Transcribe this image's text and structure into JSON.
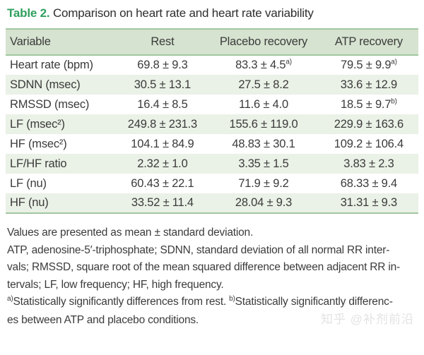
{
  "title": {
    "label": "Table 2.",
    "text": " Comparison on heart rate and heart rate variability"
  },
  "table": {
    "headers": [
      "Variable",
      "Rest",
      "Placebo recovery",
      "ATP recovery"
    ],
    "rows": [
      {
        "variable": "Heart rate (bpm)",
        "rest": "69.8 ± 9.3",
        "placebo": "83.3 ± 4.5",
        "placebo_sup": "a)",
        "atp": "79.5 ± 9.9",
        "atp_sup": "a)"
      },
      {
        "variable": "SDNN (msec)",
        "rest": "30.5 ± 13.1",
        "placebo": "27.5 ± 8.2",
        "atp": "33.6 ± 12.9"
      },
      {
        "variable": "RMSSD (msec)",
        "rest": "16.4 ± 8.5",
        "placebo": "11.6 ± 4.0",
        "atp": "18.5 ± 9.7",
        "atp_sup": "b)"
      },
      {
        "variable": "LF (msec²)",
        "rest": "249.8 ± 231.3",
        "placebo": "155.6 ± 119.0",
        "atp": "229.9 ± 163.6"
      },
      {
        "variable": "HF (msec²)",
        "rest": "104.1 ± 84.9",
        "placebo": "48.83 ± 30.1",
        "atp": "109.2 ± 106.4"
      },
      {
        "variable": "LF/HF ratio",
        "rest": "2.32 ± 1.0",
        "placebo": "3.35 ± 1.5",
        "atp": "3.83 ± 2.3"
      },
      {
        "variable": "LF (nu)",
        "rest": "60.43 ± 22.1",
        "placebo": "71.9 ± 9.2",
        "atp": "68.33 ± 9.4"
      },
      {
        "variable": "HF (nu)",
        "rest": "33.52 ± 11.4",
        "placebo": "28.04 ± 9.3",
        "atp": "31.31 ± 9.3"
      }
    ]
  },
  "footnotes": {
    "line1": "Values are presented as mean ± standard deviation.",
    "line2": "ATP, adenosine-5′-triphosphate; SDNN, standard deviation of all normal RR inter-",
    "line3": "vals; RMSSD, square root of the mean squared difference between adjacent RR in-",
    "line4": "tervals; LF, low frequency; HF, high frequency.",
    "sig_a_sup": "a)",
    "sig_a_text": "Statistically significantly differences from rest. ",
    "sig_b_sup": "b)",
    "sig_b_text_1": "Statistically significantly differenc-",
    "sig_b_text_2": "es between ATP and placebo conditions."
  },
  "watermark": {
    "text": "知乎 @补剂前沿"
  },
  "colors": {
    "accent_green": "#2fa05e",
    "header_bg": "#d6e3d0",
    "row_shade_bg": "#eaf1e6",
    "border_green": "#a2c6a0",
    "text": "#3b3b3b",
    "watermark": "#e3e3e3"
  }
}
